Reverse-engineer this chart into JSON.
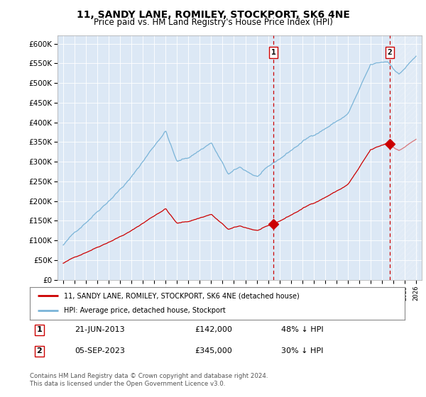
{
  "title": "11, SANDY LANE, ROMILEY, STOCKPORT, SK6 4NE",
  "subtitle": "Price paid vs. HM Land Registry's House Price Index (HPI)",
  "ylim": [
    0,
    620000
  ],
  "yticks": [
    0,
    50000,
    100000,
    150000,
    200000,
    250000,
    300000,
    350000,
    400000,
    450000,
    500000,
    550000,
    600000
  ],
  "hpi_color": "#7ab4d8",
  "price_color": "#cc0000",
  "marker1_date": 2013.47,
  "marker1_price": 142000,
  "marker2_date": 2023.68,
  "marker2_price": 345000,
  "legend_label1": "11, SANDY LANE, ROMILEY, STOCKPORT, SK6 4NE (detached house)",
  "legend_label2": "HPI: Average price, detached house, Stockport",
  "note1_date": "21-JUN-2013",
  "note1_price": "£142,000",
  "note1_hpi": "48% ↓ HPI",
  "note2_date": "05-SEP-2023",
  "note2_price": "£345,000",
  "note2_hpi": "30% ↓ HPI",
  "footer": "Contains HM Land Registry data © Crown copyright and database right 2024.\nThis data is licensed under the Open Government Licence v3.0.",
  "plot_bg_color": "#dce8f5"
}
